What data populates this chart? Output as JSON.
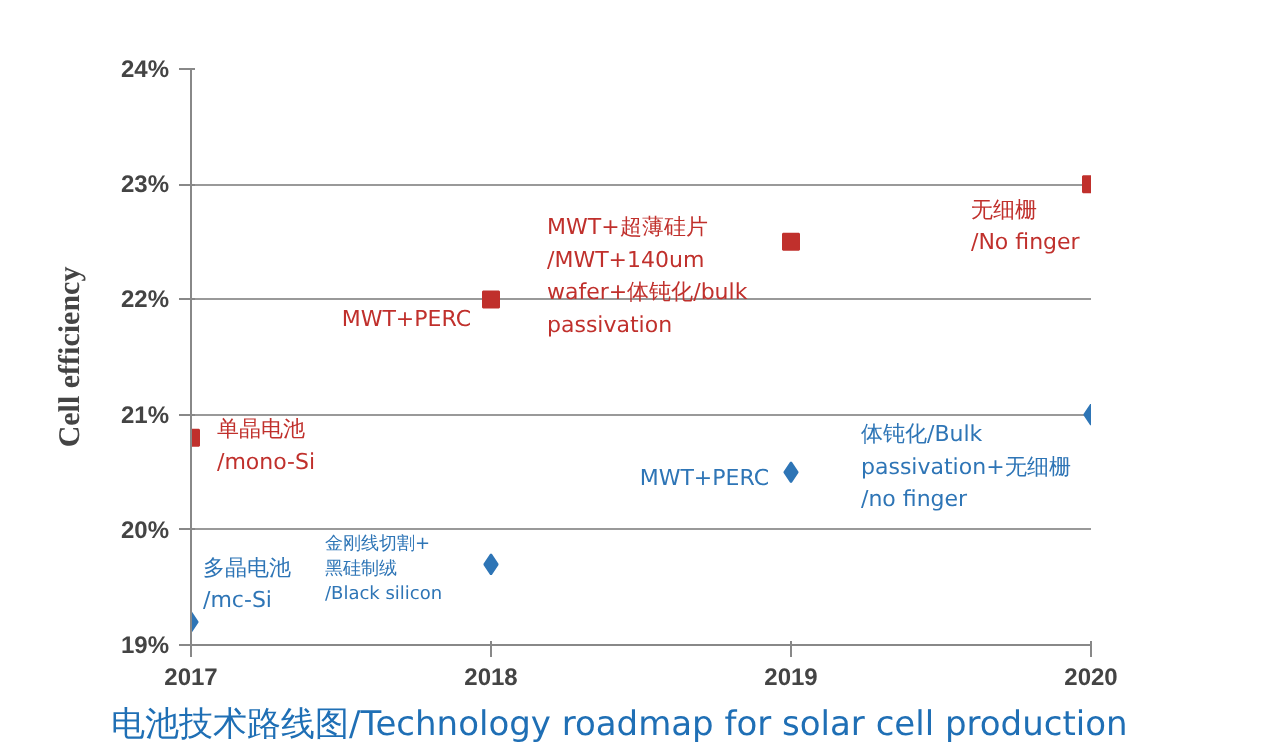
{
  "chart_data": {
    "type": "scatter",
    "title": "电池技术路线图/Technology roadmap for solar cell production",
    "ylabel": "Cell efficiency",
    "x": [
      2017,
      2018,
      2019,
      2020
    ],
    "xlim": [
      2017,
      2020
    ],
    "xticks": [
      2017,
      2018,
      2019,
      2020
    ],
    "ylim": [
      19,
      24
    ],
    "yticks": [
      {
        "value": 19,
        "label": "19%"
      },
      {
        "value": 20,
        "label": "20%"
      },
      {
        "value": 21,
        "label": "21%"
      },
      {
        "value": 22,
        "label": "22%"
      },
      {
        "value": 23,
        "label": "23%"
      },
      {
        "value": 24,
        "label": "24%"
      }
    ],
    "grid": "y",
    "series": [
      {
        "color": "#c0302c",
        "marker": "square",
        "values": [
          20.8,
          22.0,
          22.5,
          23.0
        ]
      },
      {
        "color": "#2e75b6",
        "marker": "diamond",
        "values": [
          19.2,
          19.7,
          20.5,
          21.0
        ]
      }
    ],
    "annotations": [
      {
        "text": "单晶电池\n/mono-Si",
        "x": 2017,
        "y": 20.8
      },
      {
        "text": "MWT+PERC",
        "x": 2018,
        "y": 22.0
      },
      {
        "text": "MWT+超薄硅片\n/MWT+140um\nwafer+体钝化/bulk\npassivation",
        "x": 2019,
        "y": 22.5
      },
      {
        "text": "无细栅\n/No finger",
        "x": 2020,
        "y": 23.0
      },
      {
        "text": "多晶电池\n/mc-Si",
        "x": 2017,
        "y": 19.2
      },
      {
        "text": "金刚线切割+\n黑硅制绒\n/Black silicon",
        "x": 2018,
        "y": 19.7
      },
      {
        "text": "MWT+PERC",
        "x": 2019,
        "y": 20.5
      },
      {
        "text": "体钝化/Bulk\npassivation+无细栅\n/no finger",
        "x": 2020,
        "y": 21.0
      }
    ]
  }
}
